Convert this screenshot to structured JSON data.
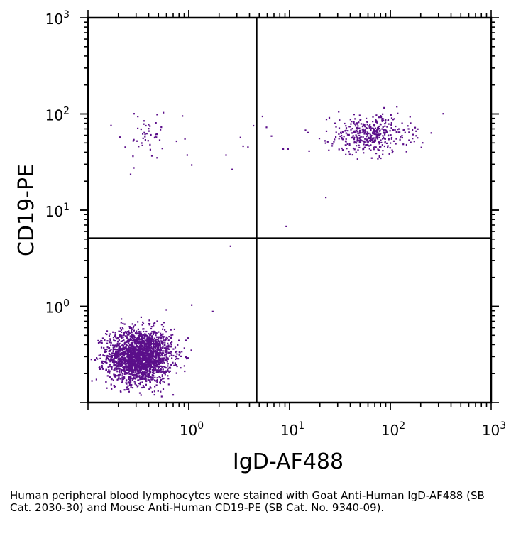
{
  "caption": "Human peripheral blood lymphocytes were stained with Goat Anti-Human IgD-AF488 (SB Cat. 2030-30) and Mouse Anti-Human CD19-PE (SB Cat. No. 9340-09).",
  "chart_data": {
    "type": "scatter",
    "xlabel": "IgD-AF488",
    "ylabel": "CD19-PE",
    "x_scale": "log",
    "y_scale": "log",
    "xlim": [
      0.1,
      1000
    ],
    "ylim": [
      0.1,
      1000
    ],
    "x_ticks": [
      {
        "value": 1,
        "base": "10",
        "exp": "0"
      },
      {
        "value": 10,
        "base": "10",
        "exp": "1"
      },
      {
        "value": 100,
        "base": "10",
        "exp": "2"
      },
      {
        "value": 1000,
        "base": "10",
        "exp": "3"
      }
    ],
    "y_ticks": [
      {
        "value": 1,
        "base": "10",
        "exp": "0"
      },
      {
        "value": 10,
        "base": "10",
        "exp": "1"
      },
      {
        "value": 100,
        "base": "10",
        "exp": "2"
      },
      {
        "value": 1000,
        "base": "10",
        "exp": "3"
      }
    ],
    "quadrant_gate": {
      "x": 4.7,
      "y": 5.1
    },
    "point_color": "#5b0f8a",
    "grid": false,
    "populations": [
      {
        "cx": 0.32,
        "cy": 0.31,
        "sx": 0.16,
        "sy": 0.14,
        "n": 2200
      },
      {
        "cx": 62,
        "cy": 62,
        "sx": 0.2,
        "sy": 0.1,
        "n": 420
      },
      {
        "cx": 0.38,
        "cy": 62,
        "sx": 0.13,
        "sy": 0.12,
        "n": 45
      }
    ],
    "points": [
      [
        1.05,
        1.05
      ],
      [
        1.7,
        0.9
      ],
      [
        2.55,
        4.3
      ],
      [
        2.3,
        38
      ],
      [
        2.65,
        27
      ],
      [
        3.4,
        47
      ],
      [
        3.8,
        46
      ],
      [
        4.3,
        77
      ],
      [
        3.2,
        58
      ],
      [
        1.05,
        30
      ],
      [
        0.95,
        38
      ],
      [
        0.9,
        56
      ],
      [
        0.85,
        97
      ],
      [
        0.55,
        105
      ],
      [
        9.1,
        6.9
      ],
      [
        22.5,
        13.8
      ],
      [
        5.8,
        74
      ],
      [
        6.5,
        60
      ],
      [
        5.3,
        96
      ],
      [
        8.5,
        44
      ],
      [
        9.5,
        44
      ],
      [
        0.26,
        24
      ],
      [
        0.28,
        28
      ],
      [
        0.23,
        46
      ],
      [
        0.28,
        55
      ]
    ]
  }
}
